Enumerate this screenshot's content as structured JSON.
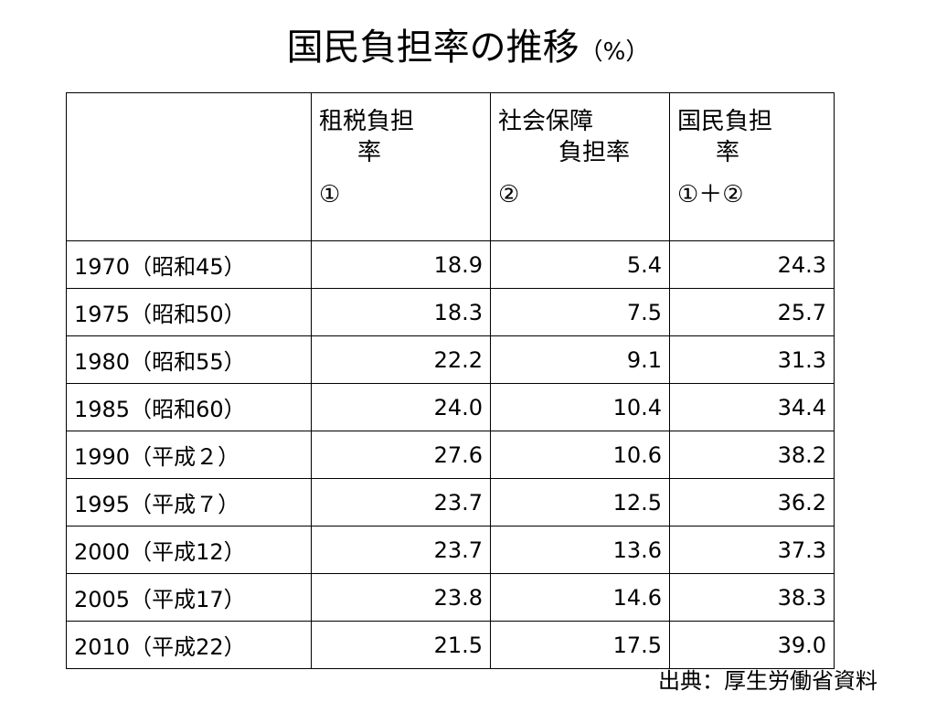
{
  "title": {
    "main": "国民負担率の推移",
    "unit": "（%）"
  },
  "table": {
    "headers": [
      {
        "line1": "",
        "line2": "",
        "line3": ""
      },
      {
        "line1": "租税負担",
        "line2": "率",
        "line3": "①"
      },
      {
        "line1": "社会保障",
        "line2": "負担率",
        "line3": "②"
      },
      {
        "line1": "国民負担",
        "line2": "率",
        "line3": "①＋②"
      }
    ],
    "rows": [
      {
        "year": "1970（昭和45）",
        "tax": "18.9",
        "social": "5.4",
        "total": "24.3"
      },
      {
        "year": "1975（昭和50）",
        "tax": "18.3",
        "social": "7.5",
        "total": "25.7"
      },
      {
        "year": "1980（昭和55）",
        "tax": "22.2",
        "social": "9.1",
        "total": "31.3"
      },
      {
        "year": "1985（昭和60）",
        "tax": "24.0",
        "social": "10.4",
        "total": "34.4"
      },
      {
        "year": "1990（平成２）",
        "tax": "27.6",
        "social": "10.6",
        "total": "38.2"
      },
      {
        "year": "1995（平成７）",
        "tax": "23.7",
        "social": "12.5",
        "total": "36.2"
      },
      {
        "year": "2000（平成12）",
        "tax": "23.7",
        "social": "13.6",
        "total": "37.3"
      },
      {
        "year": "2005（平成17）",
        "tax": "23.8",
        "social": "14.6",
        "total": "38.3"
      },
      {
        "year": "2010（平成22）",
        "tax": "21.5",
        "social": "17.5",
        "total": "39.0"
      }
    ]
  },
  "source": "出典：厚生労働省資料"
}
